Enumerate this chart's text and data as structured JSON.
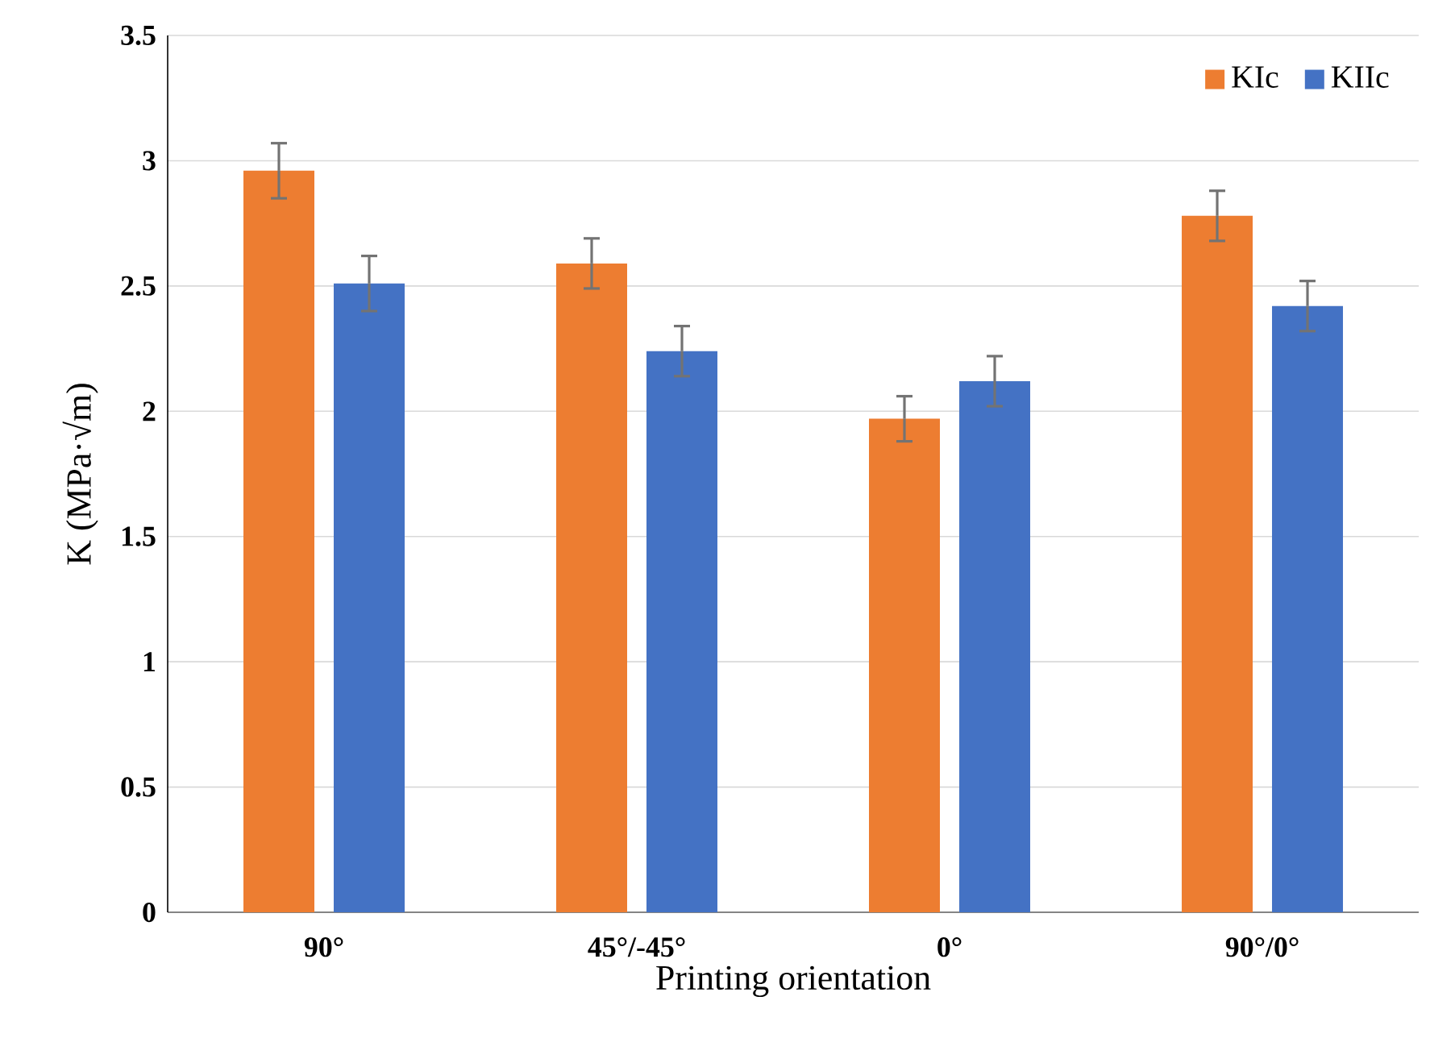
{
  "chart_data": {
    "type": "bar",
    "xlabel": "Printing orientation",
    "ylabel": "K (MPa·√m)",
    "categories": [
      "90°",
      "45°/-45°",
      "0°",
      "90°/0°"
    ],
    "series": [
      {
        "name": "KIc",
        "color": "#ed7d31",
        "values": [
          2.96,
          2.59,
          1.97,
          2.78
        ],
        "errors": [
          0.11,
          0.1,
          0.09,
          0.1
        ]
      },
      {
        "name": "KIIc",
        "color": "#4472c4",
        "values": [
          2.51,
          2.24,
          2.12,
          2.42
        ],
        "errors": [
          0.11,
          0.1,
          0.1,
          0.1
        ]
      }
    ],
    "ylim": [
      0,
      3.5
    ],
    "yticks": [
      0,
      0.5,
      1,
      1.5,
      2,
      2.5,
      3,
      3.5
    ],
    "grid": "y",
    "legend": "top right"
  }
}
